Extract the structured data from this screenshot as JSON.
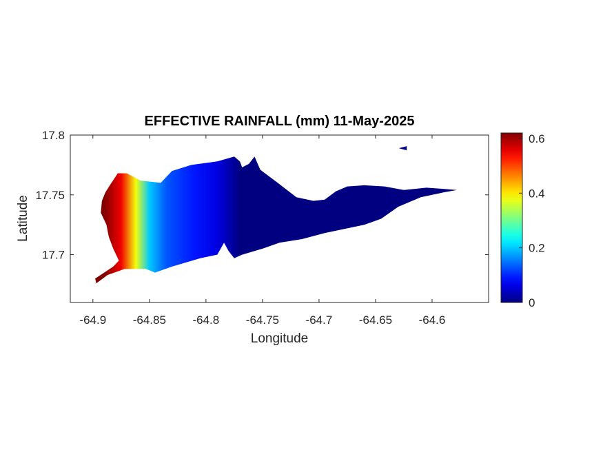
{
  "figure": {
    "title": "EFFECTIVE RAINFALL (mm) 11-May-2025",
    "xlabel": "Longitude",
    "ylabel": "Latitude"
  },
  "axes": {
    "xlim": [
      -64.92,
      -64.55
    ],
    "ylim": [
      17.66,
      17.8
    ],
    "xticks": [
      {
        "value": -64.9,
        "label": "-64.9"
      },
      {
        "value": -64.85,
        "label": "-64.85"
      },
      {
        "value": -64.8,
        "label": "-64.8"
      },
      {
        "value": -64.75,
        "label": "-64.75"
      },
      {
        "value": -64.7,
        "label": "-64.7"
      },
      {
        "value": -64.65,
        "label": "-64.65"
      },
      {
        "value": -64.6,
        "label": "-64.6"
      }
    ],
    "yticks": [
      {
        "value": 17.7,
        "label": "17.7"
      },
      {
        "value": 17.75,
        "label": "17.75"
      },
      {
        "value": 17.8,
        "label": "17.8"
      }
    ]
  },
  "colorbar": {
    "colormap": "jet",
    "range": [
      0,
      0.62
    ],
    "ticks": [
      {
        "value": 0,
        "label": "0"
      },
      {
        "value": 0.2,
        "label": "0.2"
      },
      {
        "value": 0.4,
        "label": "0.4"
      },
      {
        "value": 0.6,
        "label": "0.6"
      }
    ]
  },
  "chart_data": {
    "type": "heatmap",
    "title": "EFFECTIVE RAINFALL (mm) 11-May-2025",
    "xlabel": "Longitude",
    "ylabel": "Latitude",
    "xlim": [
      -64.92,
      -64.55
    ],
    "ylim": [
      17.66,
      17.8
    ],
    "value_range": [
      0,
      0.62
    ],
    "grid": false,
    "region_outline": [
      [
        -64.898,
        17.68
      ],
      [
        -64.89,
        17.685
      ],
      [
        -64.882,
        17.69
      ],
      [
        -64.877,
        17.695
      ],
      [
        -64.882,
        17.705
      ],
      [
        -64.886,
        17.715
      ],
      [
        -64.888,
        17.725
      ],
      [
        -64.893,
        17.735
      ],
      [
        -64.892,
        17.745
      ],
      [
        -64.889,
        17.752
      ],
      [
        -64.885,
        17.758
      ],
      [
        -64.878,
        17.768
      ],
      [
        -64.87,
        17.768
      ],
      [
        -64.858,
        17.762
      ],
      [
        -64.84,
        17.76
      ],
      [
        -64.83,
        17.77
      ],
      [
        -64.813,
        17.775
      ],
      [
        -64.79,
        17.778
      ],
      [
        -64.775,
        17.782
      ],
      [
        -64.77,
        17.778
      ],
      [
        -64.768,
        17.773
      ],
      [
        -64.762,
        17.776
      ],
      [
        -64.757,
        17.782
      ],
      [
        -64.752,
        17.771
      ],
      [
        -64.735,
        17.759
      ],
      [
        -64.72,
        17.748
      ],
      [
        -64.705,
        17.745
      ],
      [
        -64.695,
        17.746
      ],
      [
        -64.685,
        17.753
      ],
      [
        -64.675,
        17.757
      ],
      [
        -64.66,
        17.758
      ],
      [
        -64.642,
        17.757
      ],
      [
        -64.625,
        17.754
      ],
      [
        -64.605,
        17.756
      ],
      [
        -64.59,
        17.755
      ],
      [
        -64.578,
        17.754
      ],
      [
        -64.59,
        17.752
      ],
      [
        -64.61,
        17.748
      ],
      [
        -64.63,
        17.74
      ],
      [
        -64.645,
        17.73
      ],
      [
        -64.66,
        17.725
      ],
      [
        -64.675,
        17.722
      ],
      [
        -64.695,
        17.718
      ],
      [
        -64.715,
        17.713
      ],
      [
        -64.735,
        17.71
      ],
      [
        -64.75,
        17.705
      ],
      [
        -64.768,
        17.7
      ],
      [
        -64.775,
        17.697
      ],
      [
        -64.78,
        17.703
      ],
      [
        -64.784,
        17.71
      ],
      [
        -64.79,
        17.7
      ],
      [
        -64.805,
        17.697
      ],
      [
        -64.83,
        17.69
      ],
      [
        -64.845,
        17.685
      ],
      [
        -64.853,
        17.688
      ],
      [
        -64.872,
        17.688
      ],
      [
        -64.887,
        17.683
      ],
      [
        -64.897,
        17.676
      ]
    ],
    "extra_patch": [
      [
        -64.627,
        17.789
      ],
      [
        -64.623,
        17.79
      ],
      [
        -64.623,
        17.788
      ]
    ],
    "field_profile": {
      "description_by_longitude": "value decreases eastward from the western tip",
      "lon": [
        -64.89,
        -64.875,
        -64.862,
        -64.85,
        -64.835,
        -64.81,
        -64.79,
        -64.77
      ],
      "value": [
        0.62,
        0.55,
        0.38,
        0.2,
        0.13,
        0.09,
        0.06,
        0.0
      ]
    }
  }
}
